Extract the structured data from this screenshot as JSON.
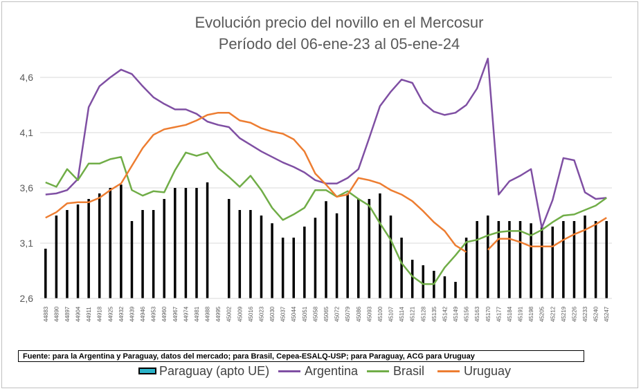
{
  "chart_data": {
    "type": "bar+line",
    "title": "Evolución precio del novillo en el Mercosur",
    "subtitle": "Período del 06-ene-23 al 05-ene-24",
    "source_note": "Fuente: para la Argentina y Paraguay, datos del mercado; para Brasil, Cepea-ESALQ-USP; para Paraguay, ACG para Uruguay",
    "ylim": [
      2.6,
      4.8
    ],
    "yticks": [
      "2,6",
      "3,1",
      "3,6",
      "4,1",
      "4,6"
    ],
    "ytick_values": [
      2.6,
      3.1,
      3.6,
      4.1,
      4.6
    ],
    "grid": "horizontal",
    "legend_position": "bottom",
    "categories": [
      "44883",
      "44890",
      "44897",
      "44904",
      "44911",
      "44918",
      "44925",
      "44932",
      "44939",
      "44946",
      "44953",
      "44960",
      "44967",
      "44974",
      "44981",
      "44988",
      "44995",
      "45002",
      "45009",
      "45016",
      "45023",
      "45030",
      "45037",
      "45044",
      "45051",
      "45058",
      "45065",
      "45072",
      "45079",
      "45086",
      "45093",
      "45100",
      "45107",
      "45114",
      "45121",
      "45128",
      "45135",
      "45142",
      "45149",
      "45156",
      "45163",
      "45170",
      "45177",
      "45184",
      "45191",
      "45198",
      "45205",
      "45212",
      "45219",
      "45226",
      "45233",
      "45240",
      "45247"
    ],
    "series": [
      {
        "name": "Paraguay (apto UE)",
        "kind": "bar",
        "color": "#000000",
        "values": [
          3.05,
          3.35,
          3.4,
          3.45,
          3.5,
          3.55,
          3.6,
          3.63,
          3.3,
          3.4,
          3.4,
          3.5,
          3.6,
          3.6,
          3.6,
          3.65,
          null,
          3.5,
          3.4,
          3.4,
          3.35,
          3.28,
          3.15,
          3.15,
          3.25,
          3.33,
          3.48,
          3.37,
          3.55,
          3.5,
          3.5,
          3.55,
          3.35,
          3.15,
          2.95,
          2.9,
          2.85,
          2.8,
          2.75,
          3.15,
          3.3,
          3.35,
          3.3,
          3.3,
          3.3,
          3.28,
          3.25,
          3.25,
          3.3,
          3.3,
          3.35,
          3.3,
          3.3
        ]
      },
      {
        "name": "Argentina",
        "kind": "line",
        "color": "#7f4fa3",
        "values": [
          3.54,
          3.55,
          3.58,
          3.68,
          4.33,
          4.52,
          4.6,
          4.67,
          4.63,
          4.52,
          4.42,
          4.36,
          4.31,
          4.31,
          4.27,
          4.2,
          4.17,
          4.15,
          4.05,
          3.99,
          3.93,
          3.88,
          3.83,
          3.79,
          3.74,
          3.67,
          3.64,
          3.64,
          3.69,
          3.77,
          4.05,
          4.34,
          4.47,
          4.58,
          4.55,
          4.37,
          4.29,
          4.26,
          4.28,
          4.35,
          4.5,
          4.77,
          3.54,
          3.66,
          3.71,
          3.77,
          3.24,
          3.49,
          3.87,
          3.85,
          3.56,
          3.5,
          3.51
        ]
      },
      {
        "name": "Brasil",
        "kind": "line",
        "color": "#70ad47",
        "values": [
          3.65,
          3.61,
          3.77,
          3.67,
          3.82,
          3.82,
          3.86,
          3.88,
          3.58,
          3.53,
          3.57,
          3.56,
          3.76,
          3.92,
          3.89,
          3.92,
          3.78,
          3.7,
          3.61,
          3.71,
          3.58,
          3.42,
          3.31,
          3.36,
          3.42,
          3.58,
          3.58,
          3.52,
          3.57,
          3.5,
          3.44,
          3.28,
          3.13,
          2.92,
          2.8,
          2.73,
          2.73,
          2.88,
          2.99,
          3.11,
          3.13,
          3.17,
          3.2,
          3.21,
          3.21,
          3.17,
          3.22,
          3.29,
          3.35,
          3.36,
          3.4,
          3.44,
          3.51
        ]
      },
      {
        "name": "Uruguay",
        "kind": "line",
        "color": "#ed7d31",
        "values": [
          3.33,
          3.38,
          3.46,
          3.47,
          3.47,
          3.51,
          3.58,
          3.64,
          3.8,
          3.96,
          4.08,
          4.13,
          4.15,
          4.17,
          4.21,
          4.26,
          4.28,
          4.28,
          4.21,
          4.19,
          4.14,
          4.11,
          4.09,
          4.04,
          3.93,
          3.73,
          3.63,
          3.52,
          3.54,
          3.69,
          3.67,
          3.64,
          3.58,
          3.54,
          3.48,
          3.39,
          3.29,
          3.21,
          3.08,
          3.02,
          null,
          3.04,
          3.14,
          3.14,
          3.11,
          3.07,
          3.07,
          3.07,
          3.13,
          3.18,
          3.22,
          3.27,
          3.33
        ]
      }
    ]
  }
}
